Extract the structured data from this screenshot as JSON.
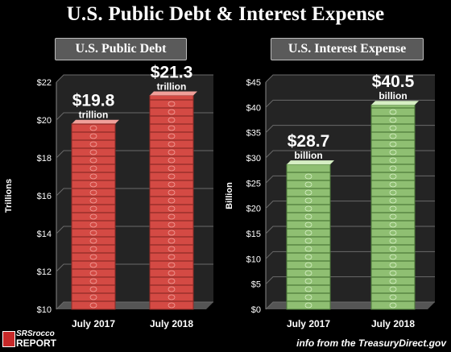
{
  "title": "U.S. Public Debt & Interest Expense",
  "footer_note": "info from the TreasuryDirect.gov",
  "logo": {
    "line1": "SRSrocco",
    "line2": "REPORT"
  },
  "colors": {
    "debt": "#d44a44",
    "interest": "#8fbf72",
    "background": "#000000"
  },
  "chart_data": [
    {
      "type": "bar",
      "title": "U.S. Public Debt",
      "ylabel": "Trillions",
      "categories": [
        "July 2017",
        "July 2018"
      ],
      "values": [
        19.8,
        21.3
      ],
      "value_labels": [
        "$19.8",
        "$21.3"
      ],
      "unit_labels": [
        "trillion",
        "trillion"
      ],
      "ylim": [
        10,
        22
      ],
      "yticks": [
        10,
        12,
        14,
        16,
        18,
        20,
        22
      ],
      "ytick_labels": [
        "$10",
        "$12",
        "$14",
        "$16",
        "$18",
        "$20",
        "$22"
      ],
      "grid": true,
      "bar_style": "stacked red currency bundles"
    },
    {
      "type": "bar",
      "title": "U.S. Interest Expense",
      "ylabel": "Billion",
      "categories": [
        "July 2017",
        "July 2018"
      ],
      "values": [
        28.7,
        40.5
      ],
      "value_labels": [
        "$28.7",
        "$40.5"
      ],
      "unit_labels": [
        "billion",
        "billion"
      ],
      "ylim": [
        0,
        45
      ],
      "yticks": [
        0,
        5,
        10,
        15,
        20,
        25,
        30,
        35,
        40,
        45
      ],
      "ytick_labels": [
        "$0",
        "$5",
        "$10",
        "$15",
        "$20",
        "$25",
        "$30",
        "$35",
        "$40",
        "$45"
      ],
      "grid": true,
      "bar_style": "stacked green currency bundles"
    }
  ]
}
